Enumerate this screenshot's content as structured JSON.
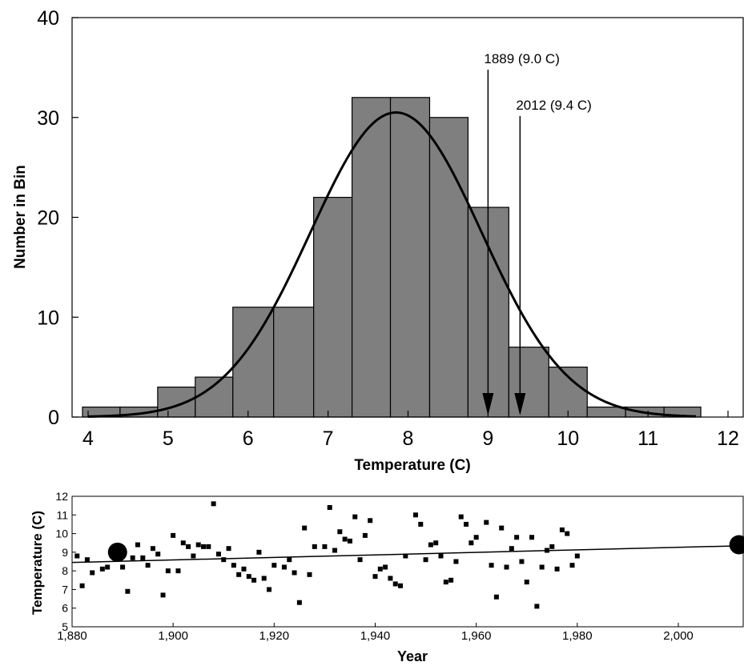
{
  "chart_data": [
    {
      "type": "bar",
      "subtype": "histogram",
      "xlabel": "Temperature (C)",
      "ylabel": "Number in Bin",
      "xlim": [
        3.8,
        12.2
      ],
      "ylim": [
        0,
        40
      ],
      "x_ticks": [
        "4",
        "5",
        "6",
        "7",
        "8",
        "9",
        "10",
        "11",
        "12"
      ],
      "y_ticks": [
        "0",
        "10",
        "20",
        "30",
        "40"
      ],
      "bar_color": "#7f7f7f",
      "bins": [
        {
          "x0": 3.93,
          "x1": 4.4,
          "value": 1
        },
        {
          "x0": 4.4,
          "x1": 4.87,
          "value": 1
        },
        {
          "x0": 4.87,
          "x1": 5.34,
          "value": 3
        },
        {
          "x0": 5.34,
          "x1": 5.81,
          "value": 4
        },
        {
          "x0": 5.81,
          "x1": 6.32,
          "value": 11
        },
        {
          "x0": 6.32,
          "x1": 6.82,
          "value": 11
        },
        {
          "x0": 6.82,
          "x1": 7.3,
          "value": 22
        },
        {
          "x0": 7.3,
          "x1": 7.78,
          "value": 32
        },
        {
          "x0": 7.78,
          "x1": 8.27,
          "value": 32
        },
        {
          "x0": 8.27,
          "x1": 8.75,
          "value": 30
        },
        {
          "x0": 8.75,
          "x1": 9.26,
          "value": 21
        },
        {
          "x0": 9.26,
          "x1": 9.76,
          "value": 7
        },
        {
          "x0": 9.76,
          "x1": 10.24,
          "value": 5
        },
        {
          "x0": 10.24,
          "x1": 10.72,
          "value": 1
        },
        {
          "x0": 10.72,
          "x1": 11.2,
          "value": 1
        },
        {
          "x0": 11.2,
          "x1": 11.66,
          "value": 1
        }
      ],
      "normal_fit": {
        "mean": 7.85,
        "sd": 1.07,
        "peak": 30.5
      },
      "annotations": [
        {
          "x": 9.0,
          "text": "1889 (9.0 C)"
        },
        {
          "x": 9.4,
          "text": "2012 (9.4 C)"
        }
      ]
    },
    {
      "type": "scatter",
      "xlabel": "Year",
      "ylabel": "Temperature (C)",
      "xlim": [
        1880,
        2013
      ],
      "ylim": [
        5,
        12
      ],
      "x_ticks": [
        "1,880",
        "1,900",
        "1,920",
        "1,940",
        "1,960",
        "1,980",
        "2,000"
      ],
      "y_ticks": [
        "5",
        "6",
        "7",
        "8",
        "9",
        "10",
        "11",
        "12"
      ],
      "points": [
        [
          1881,
          8.8
        ],
        [
          1882,
          7.2
        ],
        [
          1883,
          8.6
        ],
        [
          1884,
          7.9
        ],
        [
          1886,
          8.1
        ],
        [
          1887,
          8.2
        ],
        [
          1888,
          8.9
        ],
        [
          1890,
          8.2
        ],
        [
          1891,
          6.9
        ],
        [
          1892,
          8.7
        ],
        [
          1893,
          9.4
        ],
        [
          1894,
          8.7
        ],
        [
          1895,
          8.3
        ],
        [
          1896,
          9.2
        ],
        [
          1897,
          8.9
        ],
        [
          1898,
          6.7
        ],
        [
          1899,
          8.0
        ],
        [
          1900,
          9.9
        ],
        [
          1901,
          8.0
        ],
        [
          1902,
          9.5
        ],
        [
          1903,
          9.3
        ],
        [
          1904,
          8.8
        ],
        [
          1905,
          9.4
        ],
        [
          1906,
          9.3
        ],
        [
          1907,
          9.3
        ],
        [
          1908,
          11.6
        ],
        [
          1909,
          8.9
        ],
        [
          1910,
          8.6
        ],
        [
          1911,
          9.2
        ],
        [
          1912,
          8.3
        ],
        [
          1913,
          7.8
        ],
        [
          1914,
          8.1
        ],
        [
          1915,
          7.7
        ],
        [
          1916,
          7.5
        ],
        [
          1917,
          9.0
        ],
        [
          1918,
          7.6
        ],
        [
          1919,
          7.0
        ],
        [
          1920,
          8.3
        ],
        [
          1922,
          8.2
        ],
        [
          1923,
          8.6
        ],
        [
          1924,
          7.9
        ],
        [
          1925,
          6.3
        ],
        [
          1926,
          10.3
        ],
        [
          1927,
          7.8
        ],
        [
          1928,
          9.3
        ],
        [
          1930,
          9.3
        ],
        [
          1931,
          11.4
        ],
        [
          1932,
          9.1
        ],
        [
          1933,
          10.1
        ],
        [
          1934,
          9.7
        ],
        [
          1935,
          9.6
        ],
        [
          1936,
          10.9
        ],
        [
          1937,
          8.6
        ],
        [
          1938,
          9.9
        ],
        [
          1939,
          10.7
        ],
        [
          1940,
          7.7
        ],
        [
          1941,
          8.1
        ],
        [
          1942,
          8.2
        ],
        [
          1943,
          7.6
        ],
        [
          1944,
          7.3
        ],
        [
          1945,
          7.2
        ],
        [
          1946,
          8.8
        ],
        [
          1948,
          11.0
        ],
        [
          1949,
          10.5
        ],
        [
          1950,
          8.6
        ],
        [
          1951,
          9.4
        ],
        [
          1952,
          9.5
        ],
        [
          1953,
          8.8
        ],
        [
          1954,
          7.4
        ],
        [
          1955,
          7.5
        ],
        [
          1956,
          8.5
        ],
        [
          1957,
          10.9
        ],
        [
          1958,
          10.5
        ],
        [
          1959,
          9.5
        ],
        [
          1960,
          9.8
        ],
        [
          1962,
          10.6
        ],
        [
          1963,
          8.3
        ],
        [
          1964,
          6.6
        ],
        [
          1965,
          10.3
        ],
        [
          1966,
          8.2
        ],
        [
          1967,
          9.2
        ],
        [
          1968,
          9.8
        ],
        [
          1969,
          8.5
        ],
        [
          1970,
          7.4
        ],
        [
          1971,
          9.8
        ],
        [
          1972,
          6.1
        ],
        [
          1973,
          8.2
        ],
        [
          1974,
          9.1
        ],
        [
          1975,
          9.3
        ],
        [
          1976,
          8.1
        ],
        [
          1977,
          10.2
        ],
        [
          1978,
          10.0
        ],
        [
          1979,
          8.3
        ],
        [
          1980,
          8.8
        ]
      ],
      "highlight_points": [
        [
          1889,
          9.0
        ],
        [
          2012,
          9.4
        ]
      ],
      "trendline": {
        "x": [
          1880,
          2013
        ],
        "y": [
          8.45,
          9.35
        ]
      }
    }
  ]
}
